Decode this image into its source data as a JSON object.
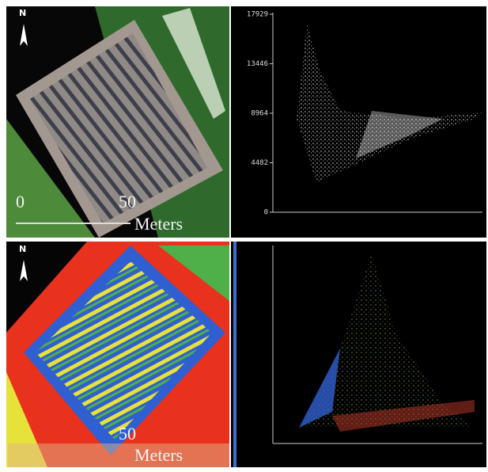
{
  "panels": {
    "top_left": {
      "north": "N",
      "scale_start": "0",
      "scale_end": "50",
      "scale_unit": "Meters"
    },
    "bottom_left": {
      "north": "N",
      "scale_end": "50",
      "scale_unit": "Meters"
    }
  },
  "chart_data": {
    "type": "scatter",
    "ylim": [
      0,
      17929
    ],
    "yticks": [
      0,
      4482,
      8964,
      13446,
      17929
    ]
  }
}
